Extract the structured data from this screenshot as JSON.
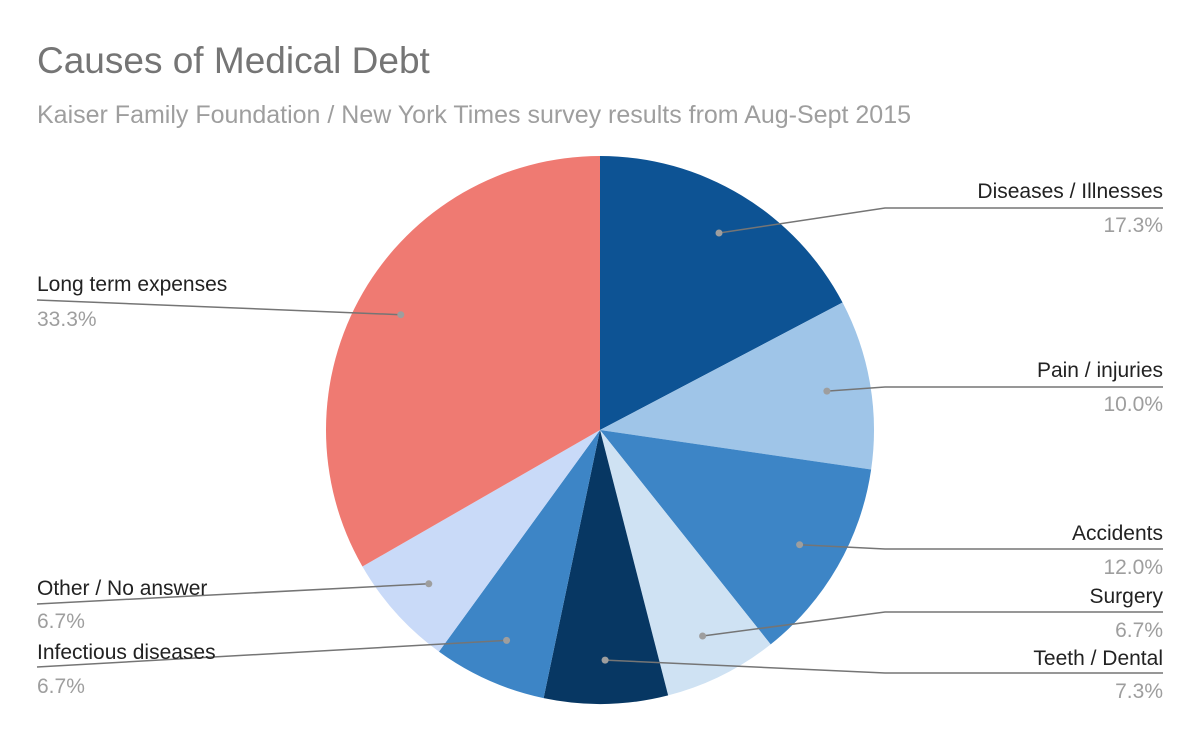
{
  "chart_data": {
    "type": "pie",
    "title": "Causes of Medical Debt",
    "subtitle": "Kaiser Family Foundation / New York Times survey results from Aug-Sept 2015",
    "slices": [
      {
        "label": "Diseases / Illnesses",
        "value": 17.3,
        "value_label": "17.3%",
        "color": "#0d5394"
      },
      {
        "label": "Pain / injuries",
        "value": 10.0,
        "value_label": "10.0%",
        "color": "#9fc5e8"
      },
      {
        "label": "Accidents",
        "value": 12.0,
        "value_label": "12.0%",
        "color": "#3d85c6"
      },
      {
        "label": "Surgery",
        "value": 6.7,
        "value_label": "6.7%",
        "color": "#cfe2f3"
      },
      {
        "label": "Teeth / Dental",
        "value": 7.3,
        "value_label": "7.3%",
        "color": "#073763"
      },
      {
        "label": "Infectious diseases",
        "value": 6.7,
        "value_label": "6.7%",
        "color": "#3d85c6"
      },
      {
        "label": "Other / No answer",
        "value": 6.7,
        "value_label": "6.7%",
        "color": "#c9daf8"
      },
      {
        "label": "Long term expenses",
        "value": 33.3,
        "value_label": "33.3%",
        "color": "#ef7a72"
      }
    ]
  }
}
